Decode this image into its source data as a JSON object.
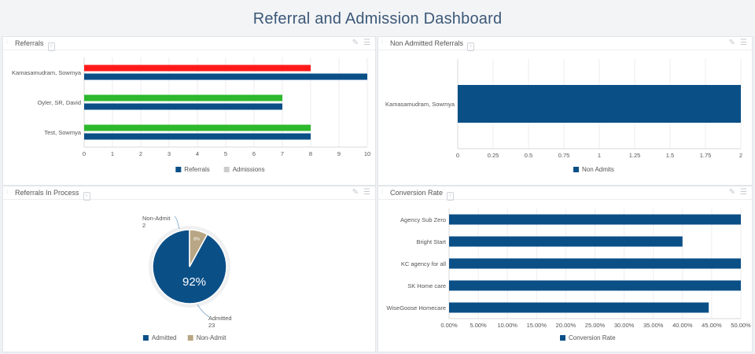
{
  "page": {
    "title": "Referral and Admission Dashboard"
  },
  "panels": {
    "referrals": {
      "title": "Referrals"
    },
    "non_admitted": {
      "title": "Non Admitted Referrals"
    },
    "in_process": {
      "title": "Referrals In Process"
    },
    "conversion": {
      "title": "Conversion Rate"
    }
  },
  "icons": {
    "info": "i",
    "edit": "✎",
    "menu": "☰",
    "grip": "⁞"
  },
  "chart_data": [
    {
      "id": "referrals",
      "type": "bar",
      "orientation": "horizontal",
      "title": "Referrals",
      "categories": [
        "Kamasamudram, Sowmya",
        "Oyler, SR, David",
        "Test, Sowmya"
      ],
      "series": [
        {
          "name": "Admissions",
          "values": [
            8,
            7,
            8
          ],
          "colors": [
            "#ff1a1a",
            "#2db82d",
            "#2db82d"
          ]
        },
        {
          "name": "Referrals",
          "values": [
            10,
            7,
            8
          ],
          "color": "#0b4f87"
        }
      ],
      "xlim": [
        0,
        10
      ],
      "xticks": [
        "0",
        "1",
        "2",
        "3",
        "4",
        "5",
        "6",
        "7",
        "8",
        "9",
        "10"
      ],
      "legend": [
        {
          "label": "Referrals",
          "color": "#0b4f87"
        },
        {
          "label": "Admissions",
          "color": "#cccccc"
        }
      ],
      "legend_position": "bottom"
    },
    {
      "id": "non_admitted",
      "type": "bar",
      "orientation": "horizontal",
      "title": "Non Admitted Referrals",
      "categories": [
        "Kamasamudram, Sowmya"
      ],
      "series": [
        {
          "name": "Non Admits",
          "values": [
            2
          ],
          "color": "#0b4f87"
        }
      ],
      "xlim": [
        0,
        2
      ],
      "xticks": [
        "0",
        "0.25",
        "0.5",
        "0.75",
        "1",
        "1.25",
        "1.5",
        "1.75",
        "2"
      ],
      "legend": [
        {
          "label": "Non Admits",
          "color": "#0b4f87"
        }
      ],
      "legend_position": "bottom"
    },
    {
      "id": "in_process",
      "type": "pie",
      "title": "Referrals In Process",
      "slices": [
        {
          "label": "Admitted",
          "value": 23,
          "percent_label": "92%",
          "color": "#0b4f87",
          "value_label": "23"
        },
        {
          "label": "Non-Admit",
          "value": 2,
          "percent_label": "8%",
          "color": "#b8a684",
          "value_label": "2"
        }
      ],
      "legend": [
        {
          "label": "Admitted",
          "color": "#0b4f87"
        },
        {
          "label": "Non-Admit",
          "color": "#b8a684"
        }
      ],
      "legend_position": "bottom"
    },
    {
      "id": "conversion",
      "type": "bar",
      "orientation": "horizontal",
      "title": "Conversion Rate",
      "categories": [
        "Agency Sub Zero",
        "Bright Start",
        "KC agency for all",
        "SK Home care",
        "WiseGoose Homecare"
      ],
      "series": [
        {
          "name": "Conversion Rate",
          "values": [
            50,
            40,
            50,
            50,
            44.5
          ],
          "color": "#0b4f87"
        }
      ],
      "xlim": [
        0,
        50
      ],
      "xticks": [
        "0.00%",
        "5.00%",
        "10.00%",
        "15.00%",
        "20.00%",
        "25.00%",
        "30.00%",
        "35.00%",
        "40.00%",
        "45.00%",
        "50.00%"
      ],
      "legend": [
        {
          "label": "Conversion Rate",
          "color": "#0b4f87"
        }
      ],
      "legend_position": "bottom"
    }
  ]
}
